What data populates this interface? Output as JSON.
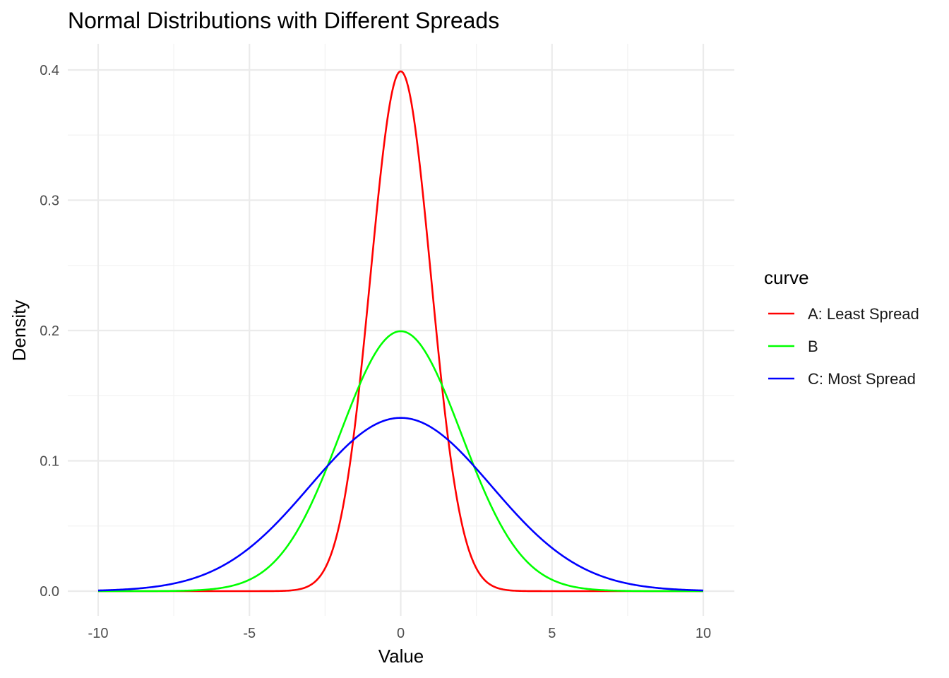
{
  "chart_data": {
    "type": "line",
    "title": "Normal Distributions with Different Spreads",
    "xlabel": "Value",
    "ylabel": "Density",
    "xlim": [
      -10,
      10
    ],
    "ylim": [
      0,
      0.4
    ],
    "xticks": [
      -10,
      -5,
      0,
      5,
      10
    ],
    "xtick_labels": [
      "-10",
      "-5",
      "0",
      "5",
      "10"
    ],
    "yticks": [
      0,
      0.1,
      0.2,
      0.3,
      0.4
    ],
    "ytick_labels": [
      "0.0",
      "0.1",
      "0.2",
      "0.3",
      "0.4"
    ],
    "grid": true,
    "legend": {
      "title": "curve",
      "position": "right"
    },
    "series": [
      {
        "name": "A: Least Spread",
        "distribution": "normal",
        "mean": 0,
        "sd": 1,
        "color": "#ff0000"
      },
      {
        "name": "B",
        "distribution": "normal",
        "mean": 0,
        "sd": 2,
        "color": "#00ff00"
      },
      {
        "name": "C: Most Spread",
        "distribution": "normal",
        "mean": 0,
        "sd": 3,
        "color": "#0000ff"
      }
    ]
  }
}
